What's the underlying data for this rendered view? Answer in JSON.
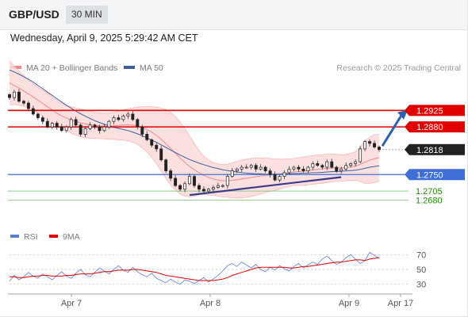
{
  "header": {
    "pair": "GBP/USD",
    "timeframe": "30 MIN"
  },
  "timestamp": "Wednesday, April 9, 2025 5:29:42 AM CET",
  "legend": {
    "ma20": "MA 20 + Bollinger Bands",
    "ma50": "MA 50",
    "credit": "Research © 2025 Trading Central",
    "rsi": "RSI",
    "rsi_ma": "9MA"
  },
  "colors": {
    "ma20": "#ef8a8a",
    "ma50": "#3e5f9c",
    "band": "#fbdada",
    "resistance": "#e00000",
    "support": "#3f6fd6",
    "target": "#27890f",
    "arrow": "#2f5fb0",
    "rsi": "#5b7fd0",
    "rsi_ma": "#e00000"
  },
  "chart_data": [
    {
      "type": "line",
      "title": "GBP/USD",
      "ylim": [
        1.261,
        1.301
      ],
      "x_ticks": [
        "Apr 7",
        "Apr 8",
        "Apr 9",
        "Apr 17"
      ],
      "levels": [
        {
          "label": "1.2925",
          "value": 1.2925,
          "kind": "resistance"
        },
        {
          "label": "1.2880",
          "value": 1.288,
          "kind": "resistance"
        },
        {
          "label": "1.2818",
          "value": 1.2818,
          "kind": "last"
        },
        {
          "label": "1.2750",
          "value": 1.275,
          "kind": "support"
        },
        {
          "label": "1.2705",
          "value": 1.2705,
          "kind": "target"
        },
        {
          "label": "1.2680",
          "value": 1.268,
          "kind": "target"
        }
      ],
      "close": [
        1.296,
        1.2975,
        1.295,
        1.2945,
        1.293,
        1.2915,
        1.2905,
        1.2895,
        1.288,
        1.289,
        1.288,
        1.287,
        1.288,
        1.29,
        1.2885,
        1.286,
        1.2875,
        1.2885,
        1.288,
        1.287,
        1.288,
        1.2895,
        1.2905,
        1.29,
        1.291,
        1.2915,
        1.29,
        1.288,
        1.286,
        1.2845,
        1.283,
        1.282,
        1.279,
        1.276,
        1.274,
        1.272,
        1.271,
        1.2725,
        1.2745,
        1.272,
        1.271,
        1.2705,
        1.271,
        1.2715,
        1.272,
        1.272,
        1.2745,
        1.276,
        1.2765,
        1.277,
        1.277,
        1.2775,
        1.2765,
        1.277,
        1.276,
        1.275,
        1.2735,
        1.2745,
        1.2755,
        1.2765,
        1.277,
        1.2765,
        1.276,
        1.277,
        1.278,
        1.2775,
        1.277,
        1.2785,
        1.277,
        1.276,
        1.2765,
        1.2775,
        1.278,
        1.2785,
        1.282,
        1.284,
        1.2835,
        1.2825,
        1.2818
      ],
      "ma20": [
        1.3,
        1.2993,
        1.2986,
        1.2978,
        1.297,
        1.2962,
        1.2953,
        1.2944,
        1.2935,
        1.2926,
        1.2917,
        1.291,
        1.2904,
        1.2899,
        1.2895,
        1.2891,
        1.2888,
        1.2886,
        1.2884,
        1.2883,
        1.2882,
        1.2882,
        1.2883,
        1.2884,
        1.2885,
        1.2886,
        1.2885,
        1.2883,
        1.2879,
        1.2873,
        1.2866,
        1.2857,
        1.2846,
        1.2834,
        1.2821,
        1.2808,
        1.2795,
        1.2783,
        1.2772,
        1.2763,
        1.2755,
        1.2748,
        1.2742,
        1.2738,
        1.2735,
        1.2733,
        1.2733,
        1.2734,
        1.2736,
        1.2738,
        1.274,
        1.2742,
        1.2744,
        1.2746,
        1.2748,
        1.2749,
        1.275,
        1.2751,
        1.2753,
        1.2755,
        1.2757,
        1.2758,
        1.2759,
        1.2761,
        1.2763,
        1.2764,
        1.2765,
        1.2767,
        1.2768,
        1.2768,
        1.2768,
        1.2769,
        1.2771,
        1.2773,
        1.2778,
        1.2784,
        1.2789,
        1.2793,
        1.2796
      ],
      "band_upper": [
        1.306,
        1.3045,
        1.3033,
        1.302,
        1.3008,
        1.2997,
        1.2988,
        1.298,
        1.2972,
        1.2962,
        1.2952,
        1.2944,
        1.2938,
        1.2935,
        1.2932,
        1.2929,
        1.2926,
        1.2923,
        1.292,
        1.2918,
        1.2917,
        1.2918,
        1.292,
        1.2923,
        1.2926,
        1.293,
        1.2932,
        1.2934,
        1.2935,
        1.2935,
        1.2935,
        1.2934,
        1.2932,
        1.2928,
        1.292,
        1.2908,
        1.2893,
        1.2875,
        1.2855,
        1.2835,
        1.2815,
        1.28,
        1.279,
        1.2783,
        1.2779,
        1.2777,
        1.2778,
        1.2782,
        1.2786,
        1.279,
        1.2792,
        1.2794,
        1.2795,
        1.2795,
        1.2795,
        1.2794,
        1.2793,
        1.2792,
        1.2792,
        1.2793,
        1.2794,
        1.2796,
        1.2798,
        1.28,
        1.2802,
        1.2803,
        1.2804,
        1.2806,
        1.2806,
        1.2805,
        1.2804,
        1.2805,
        1.2808,
        1.2812,
        1.2825,
        1.2842,
        1.2852,
        1.2858,
        1.286
      ],
      "band_lower": [
        1.294,
        1.2941,
        1.2939,
        1.2936,
        1.2932,
        1.2927,
        1.2918,
        1.2908,
        1.2898,
        1.289,
        1.2882,
        1.2876,
        1.287,
        1.2863,
        1.2858,
        1.2853,
        1.285,
        1.2849,
        1.2848,
        1.2848,
        1.2847,
        1.2846,
        1.2846,
        1.2845,
        1.2844,
        1.2842,
        1.2838,
        1.2832,
        1.2823,
        1.2811,
        1.2797,
        1.278,
        1.276,
        1.274,
        1.2722,
        1.2708,
        1.2697,
        1.2691,
        1.2689,
        1.2691,
        1.2695,
        1.2696,
        1.2694,
        1.2693,
        1.2691,
        1.2689,
        1.2688,
        1.2686,
        1.2686,
        1.2686,
        1.2688,
        1.269,
        1.2693,
        1.2697,
        1.2701,
        1.2704,
        1.2707,
        1.271,
        1.2714,
        1.2717,
        1.272,
        1.272,
        1.272,
        1.2722,
        1.2724,
        1.2725,
        1.2726,
        1.2728,
        1.273,
        1.2731,
        1.2732,
        1.2733,
        1.2734,
        1.2734,
        1.2731,
        1.2726,
        1.2726,
        1.2728,
        1.2732
      ],
      "ma50": [
        1.3035,
        1.303,
        1.3024,
        1.3017,
        1.301,
        1.3002,
        1.2993,
        1.2984,
        1.2975,
        1.2966,
        1.2957,
        1.2948,
        1.2939,
        1.2931,
        1.2923,
        1.2916,
        1.2909,
        1.2903,
        1.2897,
        1.2892,
        1.2887,
        1.2883,
        1.2879,
        1.2876,
        1.2873,
        1.287,
        1.2866,
        1.2861,
        1.2856,
        1.285,
        1.2844,
        1.2838,
        1.2831,
        1.2824,
        1.2817,
        1.281,
        1.2803,
        1.2797,
        1.2791,
        1.2786,
        1.2781,
        1.2777,
        1.2773,
        1.2769,
        1.2766,
        1.2763,
        1.2761,
        1.2759,
        1.2757,
        1.2755,
        1.2754,
        1.2753,
        1.2752,
        1.2752,
        1.2751,
        1.2751,
        1.2751,
        1.2751,
        1.2752,
        1.2752,
        1.2753,
        1.2753,
        1.2754,
        1.2754,
        1.2755,
        1.2755,
        1.2756,
        1.2757,
        1.2758,
        1.2758,
        1.2759,
        1.276,
        1.2761,
        1.2762,
        1.2764,
        1.2767,
        1.277,
        1.2772,
        1.2774
      ]
    },
    {
      "type": "line",
      "title": "RSI",
      "ylim": [
        20,
        80
      ],
      "y_ticks": [
        70,
        50,
        30
      ],
      "series": [
        {
          "name": "RSI",
          "values": [
            34,
            42,
            36,
            40,
            46,
            41,
            38,
            44,
            40,
            36,
            42,
            47,
            41,
            38,
            45,
            50,
            43,
            40,
            46,
            52,
            48,
            44,
            50,
            55,
            49,
            46,
            53,
            47,
            43,
            40,
            45,
            38,
            35,
            32,
            37,
            33,
            30,
            36,
            34,
            31,
            35,
            39,
            33,
            37,
            42,
            48,
            55,
            58,
            54,
            60,
            56,
            52,
            57,
            50,
            47,
            53,
            49,
            55,
            51,
            48,
            54,
            58,
            52,
            56,
            60,
            57,
            64,
            68,
            62,
            57,
            60,
            66,
            70,
            64,
            58,
            62,
            73,
            69,
            65
          ]
        },
        {
          "name": "9MA",
          "values": [
            40,
            40,
            39,
            39,
            40,
            41,
            41,
            42,
            42,
            41,
            41,
            41,
            42,
            42,
            43,
            44,
            44,
            44,
            45,
            46,
            47,
            47,
            48,
            49,
            49,
            49,
            50,
            50,
            49,
            48,
            47,
            46,
            44,
            42,
            41,
            40,
            39,
            38,
            37,
            36,
            35,
            35,
            35,
            35,
            36,
            37,
            39,
            42,
            44,
            46,
            48,
            50,
            52,
            53,
            53,
            53,
            53,
            53,
            53,
            52,
            52,
            53,
            54,
            54,
            55,
            56,
            57,
            58,
            59,
            60,
            60,
            61,
            62,
            63,
            63,
            62,
            64,
            65,
            66
          ]
        }
      ]
    }
  ]
}
